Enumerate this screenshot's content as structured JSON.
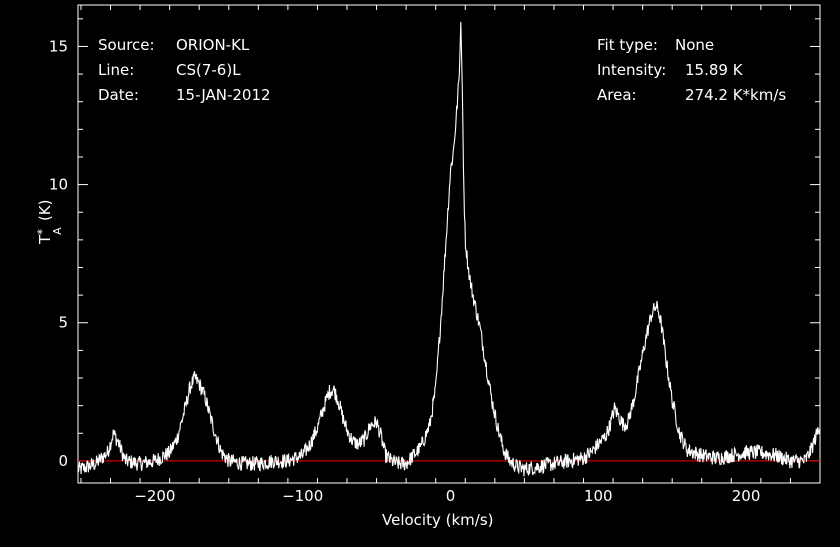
{
  "header_left": {
    "source_label": "Source:",
    "source_value": "ORION-KL",
    "line_label": "Line:",
    "line_value": "CS(7-6)L",
    "date_label": "Date:",
    "date_value": "15-JAN-2012"
  },
  "header_right": {
    "fit_label": "Fit type:",
    "fit_value": "None",
    "intensity_label": "Intensity:",
    "intensity_value": "15.89 K",
    "area_label": "Area:",
    "area_value": "274.2 K*km/s"
  },
  "colors": {
    "background": "#000000",
    "trace": "#ffffff",
    "baseline": "#cc0000",
    "axes": "#ffffff"
  },
  "chart_data": {
    "type": "line",
    "xlabel": "Velocity (km/s)",
    "ylabel": "T",
    "ylabel_sup": "*",
    "ylabel_sub": "A",
    "ylabel_unit": "(K)",
    "xlim": [
      -252,
      250
    ],
    "ylim": [
      -0.8,
      16.5
    ],
    "xticks": [
      -200,
      -100,
      0,
      100,
      200
    ],
    "yticks": [
      0,
      5,
      10,
      15
    ],
    "baseline": 0,
    "grid": false,
    "series": [
      {
        "x": [
          -250,
          -240,
          -232,
          -228,
          -225,
          -220,
          -210,
          -200,
          -190,
          -185,
          -180,
          -176,
          -173,
          -170,
          -166,
          -162,
          -158,
          -155,
          -150,
          -140,
          -130,
          -120,
          -110,
          -100,
          -95,
          -90,
          -86,
          -82,
          -79,
          -76,
          -73,
          -70,
          -66,
          -62,
          -58,
          -54,
          -50,
          -47,
          -44,
          -40,
          -36,
          -30,
          -20,
          -14,
          -10,
          -6,
          -3,
          0,
          2,
          4,
          6,
          7,
          8,
          9,
          10,
          12,
          14,
          16,
          20,
          24,
          28,
          32,
          36,
          40,
          45,
          50,
          60,
          70,
          80,
          90,
          95,
          100,
          105,
          108,
          111,
          114,
          117,
          120,
          124,
          128,
          132,
          136,
          139,
          141,
          143,
          146,
          150,
          155,
          160,
          165,
          170,
          180,
          190,
          200,
          210,
          220,
          230,
          240,
          244,
          248,
          250
        ],
        "y": [
          -0.3,
          -0.1,
          0.3,
          1.0,
          0.7,
          0.0,
          -0.1,
          0.0,
          0.3,
          0.8,
          1.8,
          2.7,
          3.0,
          2.8,
          2.3,
          1.5,
          0.8,
          0.3,
          0.0,
          -0.1,
          -0.1,
          0.0,
          0.0,
          0.2,
          0.6,
          1.2,
          1.9,
          2.5,
          2.6,
          2.2,
          1.6,
          1.1,
          0.7,
          0.6,
          0.8,
          1.3,
          1.4,
          0.9,
          0.2,
          0.0,
          -0.1,
          -0.1,
          0.5,
          1.3,
          2.6,
          5.5,
          8.0,
          10.5,
          11.2,
          12.5,
          14.0,
          15.89,
          13.5,
          10.0,
          8.0,
          7.0,
          6.3,
          5.8,
          4.8,
          3.5,
          2.2,
          1.2,
          0.4,
          0.0,
          -0.2,
          -0.3,
          -0.2,
          -0.1,
          0.0,
          0.1,
          0.3,
          0.6,
          0.9,
          1.3,
          1.9,
          1.6,
          1.3,
          1.4,
          2.2,
          3.3,
          4.4,
          5.3,
          5.6,
          5.4,
          4.8,
          3.6,
          2.2,
          1.0,
          0.4,
          0.3,
          0.2,
          0.1,
          0.2,
          0.3,
          0.3,
          0.2,
          0.0,
          0.0,
          0.4,
          1.0,
          1.3
        ]
      }
    ]
  }
}
